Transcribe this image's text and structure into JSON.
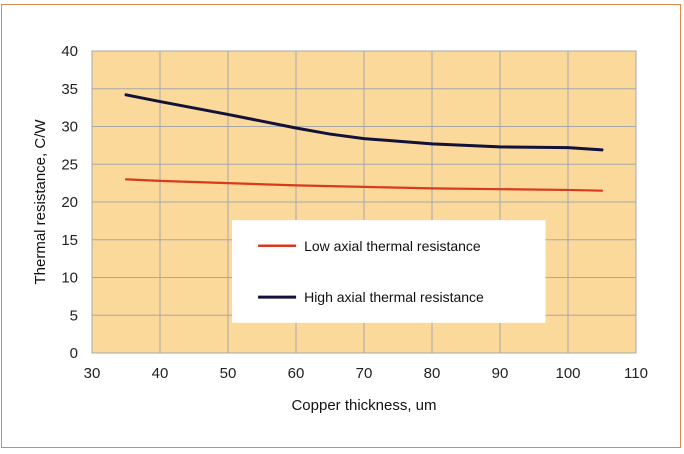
{
  "chart_data": {
    "type": "line",
    "title": "",
    "xlabel": "Copper thickness, um",
    "ylabel": "Thermal resistance, C/W",
    "xlim": [
      30,
      110
    ],
    "ylim": [
      0,
      40
    ],
    "xticks": [
      30,
      40,
      50,
      60,
      70,
      80,
      90,
      100,
      110
    ],
    "yticks": [
      0,
      5,
      10,
      15,
      20,
      25,
      30,
      35,
      40
    ],
    "grid": true,
    "plot_background": "#fad99a",
    "legend_position": "center-right",
    "series": [
      {
        "name": "Low axial thermal resistance",
        "color": "#d93a1c",
        "x": [
          35,
          40,
          50,
          60,
          70,
          80,
          90,
          100,
          105
        ],
        "y": [
          23.0,
          22.8,
          22.5,
          22.2,
          22.0,
          21.8,
          21.7,
          21.6,
          21.5
        ]
      },
      {
        "name": "High axial thermal resistance",
        "color": "#12113a",
        "x": [
          35,
          40,
          50,
          55,
          60,
          65,
          70,
          80,
          90,
          100,
          105
        ],
        "y": [
          34.2,
          33.3,
          31.6,
          30.7,
          29.8,
          29.0,
          28.4,
          27.7,
          27.3,
          27.2,
          26.9
        ]
      }
    ]
  }
}
